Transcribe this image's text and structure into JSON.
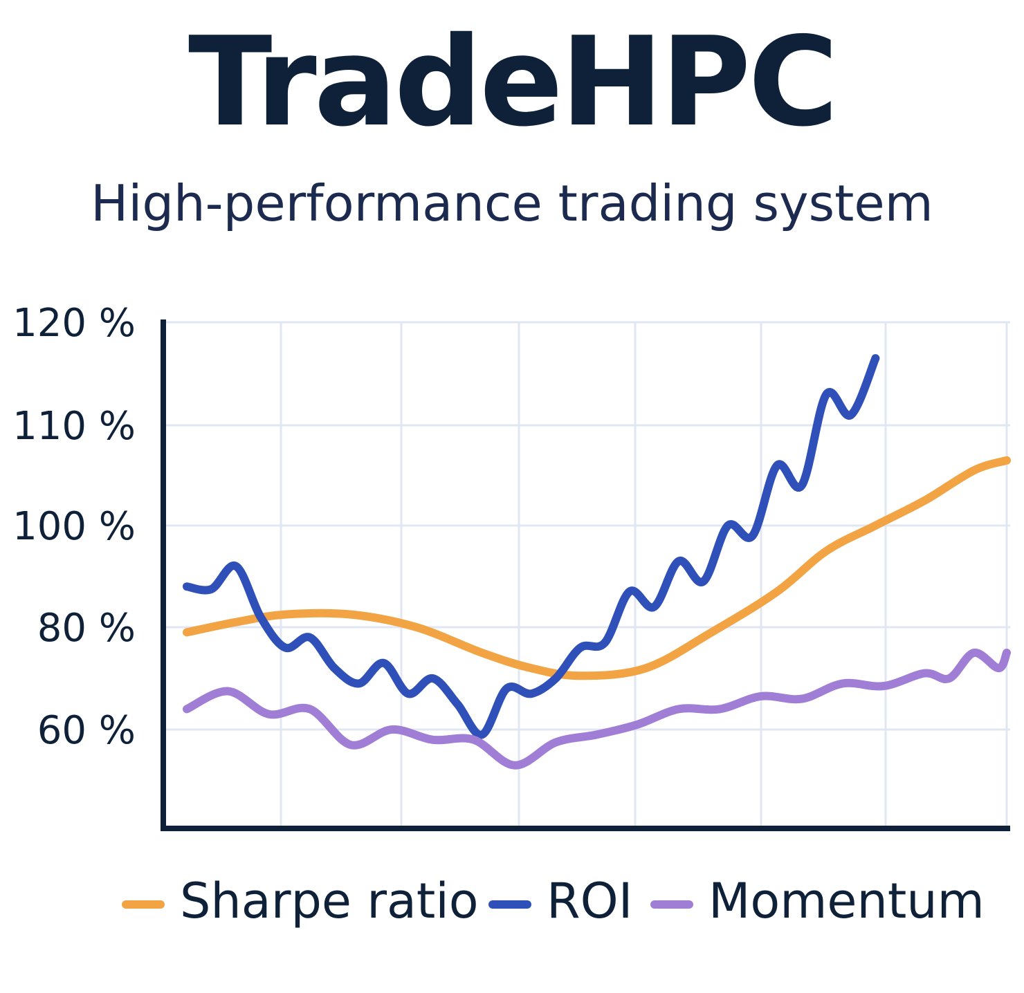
{
  "header": {
    "title": "TradeHPC",
    "subtitle": "High-performance trading system"
  },
  "colors": {
    "sharpe": "#f2a445",
    "roi": "#2f50b8",
    "momentum": "#a07ed6",
    "axis": "#0f2139",
    "grid": "#e1e7f2"
  },
  "chart_data": {
    "type": "line",
    "title": "",
    "xlabel": "",
    "ylabel": "",
    "y_ticks": [
      {
        "value": 120,
        "label": "120 %"
      },
      {
        "value": 110,
        "label": "110 %"
      },
      {
        "value": 100,
        "label": "100 %"
      },
      {
        "value": 80,
        "label": "80 %"
      },
      {
        "value": 60,
        "label": "60 %"
      }
    ],
    "grid": true,
    "legend_position": "bottom",
    "series": [
      {
        "name": "Sharpe ratio",
        "color_key": "sharpe",
        "points": [
          [
            0,
            79
          ],
          [
            6,
            81
          ],
          [
            12,
            82.5
          ],
          [
            20,
            82.5
          ],
          [
            28,
            80
          ],
          [
            36,
            75
          ],
          [
            42,
            72
          ],
          [
            48,
            70.5
          ],
          [
            56,
            72
          ],
          [
            64,
            79
          ],
          [
            72,
            87
          ],
          [
            78,
            95
          ],
          [
            84,
            100
          ],
          [
            90,
            102.5
          ],
          [
            96,
            105.5
          ],
          [
            100,
            106.5
          ]
        ]
      },
      {
        "name": "ROI",
        "color_key": "roi",
        "points": [
          [
            0,
            88
          ],
          [
            3,
            87.5
          ],
          [
            6,
            92
          ],
          [
            9,
            82
          ],
          [
            12,
            76
          ],
          [
            15,
            78
          ],
          [
            18,
            72
          ],
          [
            21,
            69
          ],
          [
            24,
            73
          ],
          [
            27,
            67
          ],
          [
            30,
            70
          ],
          [
            33,
            65
          ],
          [
            36,
            59
          ],
          [
            39,
            68
          ],
          [
            42,
            67
          ],
          [
            45,
            70
          ],
          [
            48,
            76
          ],
          [
            51,
            77
          ],
          [
            54,
            87
          ],
          [
            57,
            84
          ],
          [
            60,
            93
          ],
          [
            63,
            89
          ],
          [
            66,
            100
          ],
          [
            69,
            98
          ],
          [
            72,
            106
          ],
          [
            75,
            104
          ],
          [
            78,
            113
          ],
          [
            81,
            111
          ],
          [
            84,
            116.5
          ]
        ]
      },
      {
        "name": "Momentum",
        "color_key": "momentum",
        "points": [
          [
            0,
            64
          ],
          [
            5,
            67.5
          ],
          [
            10,
            63
          ],
          [
            15,
            64
          ],
          [
            20,
            57
          ],
          [
            25,
            60
          ],
          [
            30,
            58
          ],
          [
            35,
            58
          ],
          [
            40,
            53
          ],
          [
            45,
            57.5
          ],
          [
            50,
            59
          ],
          [
            55,
            61
          ],
          [
            60,
            64
          ],
          [
            65,
            64
          ],
          [
            70,
            66.5
          ],
          [
            75,
            66
          ],
          [
            80,
            69
          ],
          [
            85,
            68.5
          ],
          [
            90,
            71
          ],
          [
            93,
            70
          ],
          [
            96,
            75
          ],
          [
            99,
            72
          ],
          [
            100,
            75
          ]
        ]
      }
    ]
  }
}
